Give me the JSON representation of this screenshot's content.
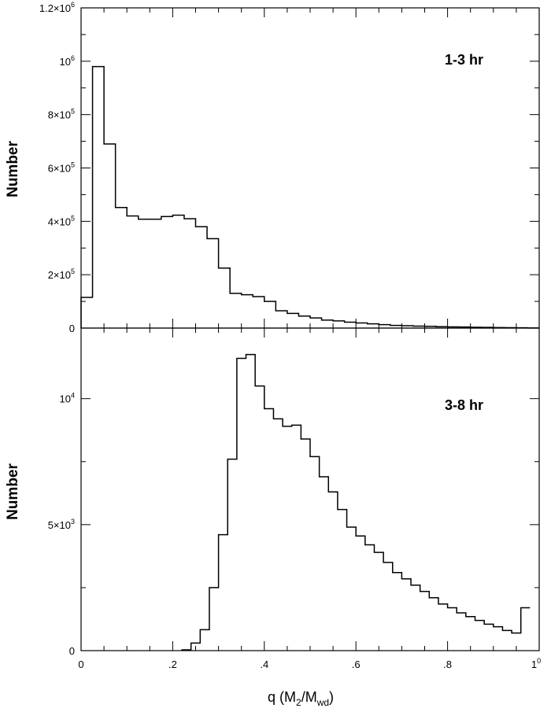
{
  "chart_data": [
    {
      "type": "histogram-step",
      "panel": "top",
      "annotation": "1-3 hr",
      "ylabel": "Number",
      "xlabel": "",
      "xlim": [
        0,
        1
      ],
      "ylim": [
        0,
        1200000
      ],
      "x_ticks": [
        0,
        0.2,
        0.4,
        0.6,
        0.8,
        1.0
      ],
      "y_tick_labels": [
        {
          "value": 0,
          "mantissa": "0",
          "exp": ""
        },
        {
          "value": 200000,
          "mantissa": "2×10",
          "exp": "5"
        },
        {
          "value": 400000,
          "mantissa": "4×10",
          "exp": "5"
        },
        {
          "value": 600000,
          "mantissa": "6×10",
          "exp": "5"
        },
        {
          "value": 800000,
          "mantissa": "8×10",
          "exp": "5"
        },
        {
          "value": 1000000,
          "mantissa": "10",
          "exp": "6"
        },
        {
          "value": 1200000,
          "mantissa": "1.2×10",
          "exp": "6"
        }
      ],
      "bin_width": 0.025,
      "bin_start": 0,
      "values": [
        115000,
        980000,
        690000,
        452000,
        420000,
        408000,
        408000,
        418000,
        423000,
        410000,
        380000,
        335000,
        225000,
        130000,
        125000,
        118000,
        100000,
        65000,
        55000,
        45000,
        38000,
        30000,
        27000,
        22000,
        19000,
        16000,
        13000,
        10000,
        9000,
        7500,
        6500,
        5000,
        4500,
        4000,
        3000,
        2500,
        2000,
        1500,
        1000,
        500
      ]
    },
    {
      "type": "histogram-step",
      "panel": "bottom",
      "annotation": "3-8 hr",
      "ylabel": "Number",
      "xlabel": "q (M2/Mwd)",
      "xlim": [
        0,
        1
      ],
      "ylim": [
        0,
        12800
      ],
      "x_ticks": [
        0,
        0.2,
        0.4,
        0.6,
        0.8,
        1.0
      ],
      "y_tick_labels": [
        {
          "value": 0,
          "mantissa": "0",
          "exp": ""
        },
        {
          "value": 5000,
          "mantissa": "5×10",
          "exp": "3"
        },
        {
          "value": 10000,
          "mantissa": "10",
          "exp": "4"
        }
      ],
      "bin_width": 0.02,
      "bin_start": 0.22,
      "values": [
        30,
        300,
        830,
        2500,
        4600,
        7600,
        11600,
        11750,
        10500,
        9600,
        9200,
        8900,
        8950,
        8400,
        7700,
        6900,
        6300,
        5600,
        4900,
        4550,
        4200,
        3900,
        3500,
        3100,
        2850,
        2600,
        2350,
        2100,
        1850,
        1700,
        1500,
        1350,
        1200,
        1050,
        950,
        800,
        700,
        1700
      ]
    }
  ],
  "labels": {
    "top_ylabel": "Number",
    "bottom_ylabel": "Number",
    "top_annotation": "1-3 hr",
    "bottom_annotation": "3-8 hr",
    "xlabel_q": "q (M",
    "xlabel_sub1": "2",
    "xlabel_slash": "/M",
    "xlabel_sub2": "wd",
    "xlabel_close": ")",
    "x_tick_labels": [
      "0",
      ".2",
      ".4",
      ".6",
      ".8",
      "1"
    ],
    "x_last_exp": "0"
  }
}
